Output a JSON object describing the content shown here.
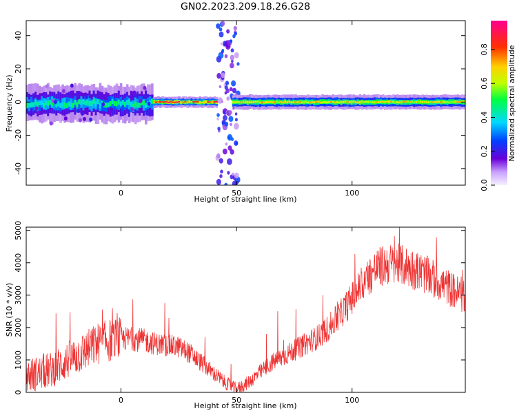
{
  "figure_title": "GN02.2023.209.18.26.G28",
  "chart_data": [
    {
      "type": "heatmap",
      "xlabel": "Height of straight line (km)",
      "ylabel": "Frequency (Hz)",
      "xlim": [
        -41,
        149
      ],
      "ylim": [
        -50,
        49
      ],
      "xticks": [
        0,
        50,
        100
      ],
      "yticks": [
        -40,
        -20,
        0,
        20,
        40
      ],
      "colorbar": {
        "label": "Normalized spectral amplitude",
        "range": [
          0,
          0.97
        ],
        "ticks": [
          0.0,
          0.2,
          0.4,
          0.6,
          0.8
        ],
        "colors": [
          "#f8f0ff",
          "#6a00d8",
          "#0040ff",
          "#00d8ff",
          "#00ff40",
          "#c0ff00",
          "#ffd000",
          "#ff3000",
          "#ff0090"
        ]
      },
      "description_bands": [
        {
          "x_range": [
            -41,
            13
          ],
          "center_hz": -1,
          "spread_hz": 5,
          "amplitude": 0.45
        },
        {
          "x_range": [
            13,
            41
          ],
          "center_hz": 0,
          "spread_hz": 1.5,
          "amplitude": 0.85
        },
        {
          "x_range": [
            41,
            50
          ],
          "center_hz": 0,
          "spread_hz": 50,
          "amplitude": 0.12
        },
        {
          "x_range": [
            48,
            149
          ],
          "center_hz": 0,
          "spread_hz": 2,
          "amplitude": 0.7
        }
      ]
    },
    {
      "type": "line",
      "xlabel": "Height of straight line (km)",
      "ylabel": "SNR (10 * v/v)",
      "xlim": [
        -41,
        149
      ],
      "ylim": [
        0,
        5100
      ],
      "xticks": [
        0,
        50,
        100
      ],
      "yticks": [
        0,
        1000,
        2000,
        3000,
        4000,
        5000
      ],
      "series_color": "#ee3333",
      "x": [
        -41,
        -35,
        -30,
        -25,
        -20,
        -15,
        -10,
        -5,
        0,
        5,
        10,
        15,
        20,
        25,
        30,
        35,
        40,
        45,
        50,
        55,
        60,
        65,
        70,
        75,
        80,
        85,
        90,
        95,
        100,
        105,
        110,
        115,
        120,
        125,
        130,
        135,
        140,
        145,
        149
      ],
      "y": [
        500,
        600,
        700,
        900,
        1100,
        1300,
        1500,
        1600,
        1650,
        1650,
        1600,
        1500,
        1450,
        1400,
        1200,
        900,
        600,
        300,
        100,
        300,
        600,
        900,
        1100,
        1300,
        1500,
        1700,
        2000,
        2400,
        2900,
        3400,
        3800,
        3950,
        3950,
        3850,
        3700,
        3500,
        3300,
        3100,
        2900
      ]
    }
  ]
}
